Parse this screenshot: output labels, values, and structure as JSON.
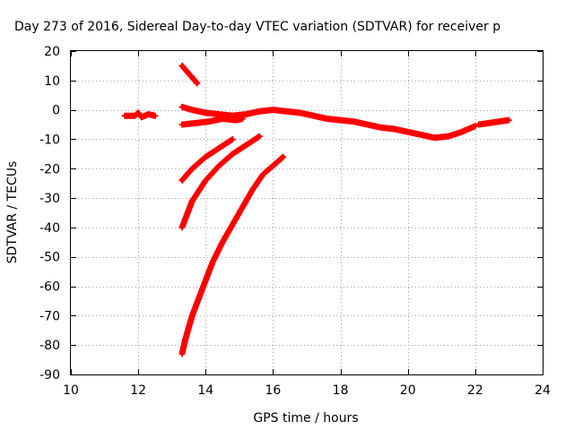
{
  "chart_data": {
    "type": "scatter",
    "title": "Day 273 of 2016, Sidereal Day-to-day VTEC variation (SDTVAR) for receiver p",
    "xlabel": "GPS time / hours",
    "ylabel": "SDTVAR / TECUs",
    "xlim": [
      10,
      24
    ],
    "ylim": [
      -90,
      20
    ],
    "xticks": [
      10,
      12,
      14,
      16,
      18,
      20,
      22,
      24
    ],
    "yticks": [
      20,
      10,
      0,
      -10,
      -20,
      -30,
      -40,
      -50,
      -60,
      -70,
      -80,
      -90
    ],
    "grid": true,
    "legend": "none",
    "marker": "plus",
    "color": "#ff0000",
    "series": [
      {
        "x": [
          11.6,
          11.9,
          12.0,
          12.1,
          12.3,
          12.5
        ],
        "y": [
          -2.0,
          -2.0,
          -1.0,
          -2.5,
          -1.5,
          -2.0
        ]
      },
      {
        "x": [
          13.3,
          13.45,
          13.6,
          13.75
        ],
        "y": [
          15.0,
          13.0,
          11.0,
          9.0
        ]
      },
      {
        "x": [
          13.3,
          13.6,
          14.0,
          14.4,
          14.8,
          15.2,
          15.6,
          16.0,
          16.4,
          16.8,
          17.2,
          17.6,
          18.0,
          18.4,
          18.8,
          19.2,
          19.6,
          20.0,
          20.4,
          20.8,
          21.2,
          21.6,
          22.0
        ],
        "y": [
          1.0,
          0.0,
          -1.0,
          -1.5,
          -2.0,
          -1.5,
          -0.5,
          0.0,
          -0.5,
          -1.0,
          -2.0,
          -3.0,
          -3.5,
          -4.0,
          -5.0,
          -6.0,
          -6.5,
          -7.5,
          -8.5,
          -9.5,
          -9.0,
          -7.5,
          -5.5
        ]
      },
      {
        "x": [
          13.3,
          13.7,
          14.1,
          14.5,
          14.9,
          15.1
        ],
        "y": [
          -5.0,
          -4.5,
          -4.0,
          -3.0,
          -3.5,
          -3.0
        ]
      },
      {
        "x": [
          22.1,
          22.4,
          22.7,
          23.0
        ],
        "y": [
          -5.0,
          -4.5,
          -4.0,
          -3.5
        ]
      },
      {
        "x": [
          13.3,
          13.6,
          14.0,
          14.4,
          14.8
        ],
        "y": [
          -24.0,
          -20.0,
          -16.0,
          -13.0,
          -10.0
        ]
      },
      {
        "x": [
          13.3,
          13.6,
          14.0,
          14.4,
          14.8,
          15.2,
          15.6
        ],
        "y": [
          -40.0,
          -31.0,
          -24.0,
          -19.0,
          -15.0,
          -12.0,
          -9.0
        ]
      },
      {
        "x": [
          13.3,
          13.4,
          13.6,
          13.8,
          14.0,
          14.2,
          14.5,
          14.8,
          15.1,
          15.4,
          15.7,
          16.0,
          16.3
        ],
        "y": [
          -83.0,
          -78.0,
          -70.0,
          -64.0,
          -58.0,
          -52.0,
          -45.0,
          -39.0,
          -33.0,
          -27.0,
          -22.0,
          -19.0,
          -16.0
        ]
      }
    ]
  }
}
